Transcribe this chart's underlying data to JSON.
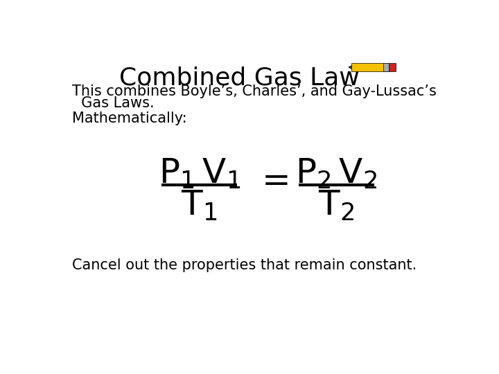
{
  "title": "Combined Gas Law",
  "subtitle": "This combines Boyle’s, Charles’, and Gay-Lussac’s",
  "subtitle2": "  Gas Laws.",
  "mathematically_label": "Mathematically:",
  "cancel_text": "Cancel out the properties that remain constant.",
  "background_color": "#ffffff",
  "text_color": "#000000",
  "title_fontsize": 26,
  "body_fontsize": 15,
  "pencil_body_color": "#F5C000",
  "pencil_tip_color": "#C8A000",
  "pencil_eraser_color": "#CC2222",
  "pencil_band_color": "#AAAAAA"
}
